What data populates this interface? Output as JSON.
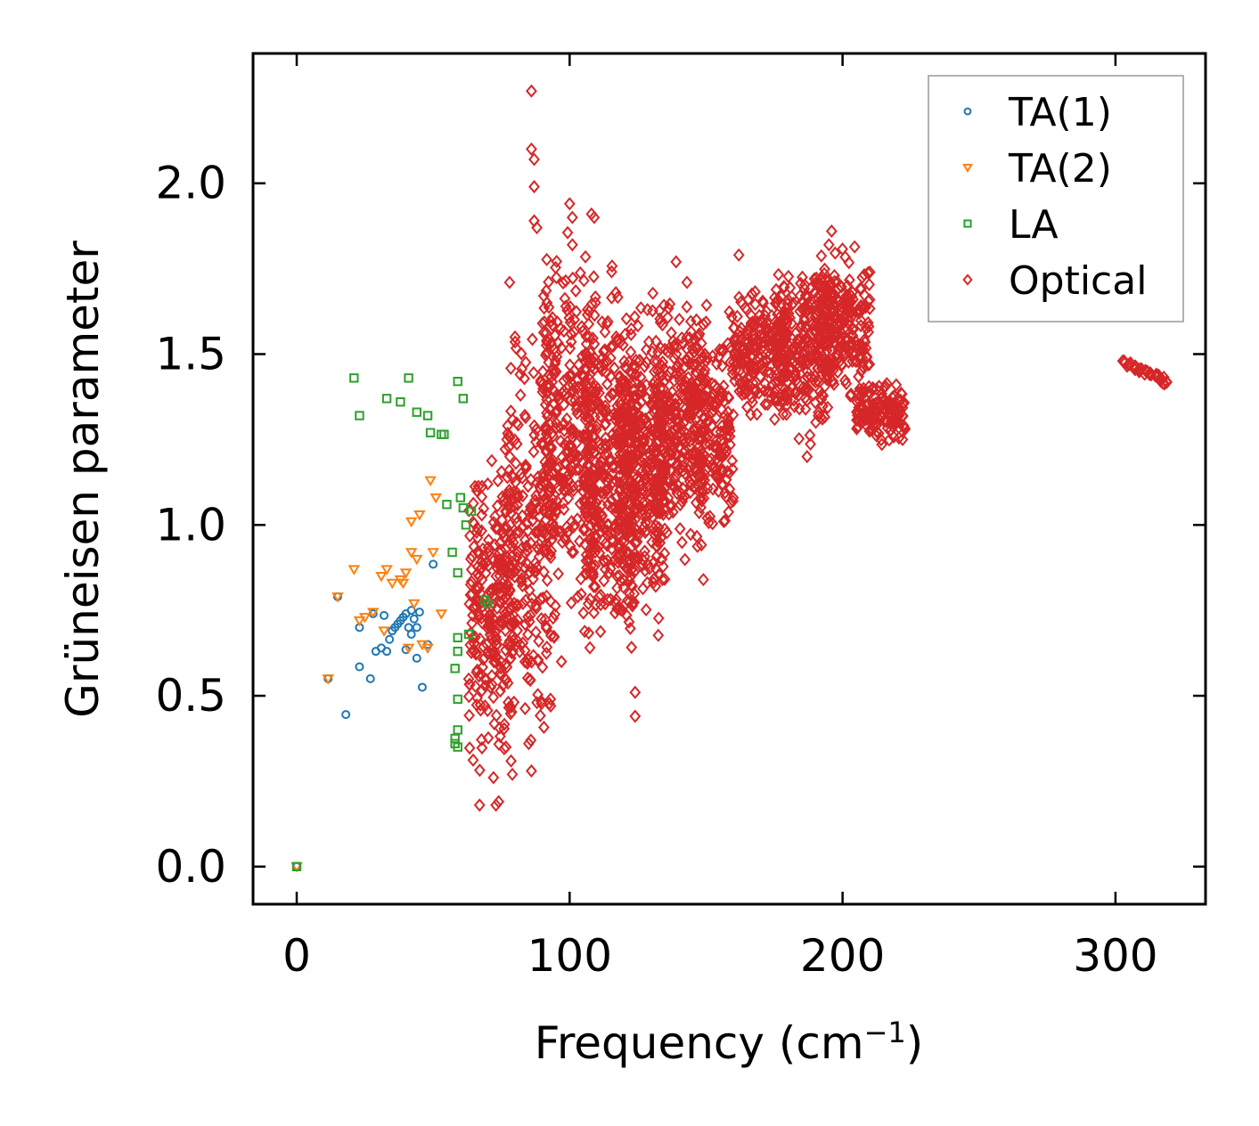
{
  "chart_data": {
    "type": "scatter",
    "title": "",
    "xlabel": "Frequency (cm",
    "xlabel_sup": "−1",
    "xlabel_close": ")",
    "ylabel": "Grüneisen parameter",
    "xlim": [
      -16,
      333
    ],
    "ylim": [
      -0.11,
      2.38
    ],
    "xticks": [
      0,
      100,
      200,
      300
    ],
    "xtick_labels": [
      "0",
      "100",
      "200",
      "300"
    ],
    "yticks": [
      0.0,
      0.5,
      1.0,
      1.5,
      2.0
    ],
    "ytick_labels": [
      "0.0",
      "0.5",
      "1.0",
      "1.5",
      "2.0"
    ],
    "grid": false,
    "legend_position": "top-right",
    "series": [
      {
        "name": "TA(1)",
        "marker": "circle",
        "color": "#1f77b4",
        "points": [
          [
            0,
            0.0
          ],
          [
            11.5,
            0.55
          ],
          [
            15,
            0.79
          ],
          [
            18,
            0.445
          ],
          [
            23,
            0.7
          ],
          [
            23,
            0.585
          ],
          [
            27,
            0.55
          ],
          [
            28,
            0.74
          ],
          [
            29,
            0.63
          ],
          [
            31,
            0.64
          ],
          [
            32,
            0.735
          ],
          [
            33,
            0.63
          ],
          [
            34,
            0.665
          ],
          [
            35,
            0.69
          ],
          [
            36,
            0.7
          ],
          [
            37,
            0.71
          ],
          [
            38,
            0.72
          ],
          [
            39,
            0.73
          ],
          [
            40,
            0.74
          ],
          [
            40,
            0.635
          ],
          [
            41,
            0.7
          ],
          [
            42,
            0.75
          ],
          [
            42,
            0.68
          ],
          [
            43,
            0.725
          ],
          [
            44,
            0.61
          ],
          [
            44,
            0.7
          ],
          [
            45,
            0.745
          ],
          [
            46,
            0.525
          ],
          [
            48,
            0.65
          ],
          [
            50,
            0.885
          ]
        ]
      },
      {
        "name": "TA(2)",
        "marker": "triangle-down",
        "color": "#ff7f0e",
        "points": [
          [
            0,
            0.0
          ],
          [
            11.5,
            0.55
          ],
          [
            15,
            0.79
          ],
          [
            21,
            0.87
          ],
          [
            23,
            0.72
          ],
          [
            25,
            0.73
          ],
          [
            28,
            0.745
          ],
          [
            31,
            0.85
          ],
          [
            32,
            0.69
          ],
          [
            33,
            0.87
          ],
          [
            35,
            0.83
          ],
          [
            38,
            0.84
          ],
          [
            39,
            0.83
          ],
          [
            40,
            0.86
          ],
          [
            41,
            0.64
          ],
          [
            42,
            0.92
          ],
          [
            42,
            1.01
          ],
          [
            43,
            0.77
          ],
          [
            44,
            0.9
          ],
          [
            45,
            1.03
          ],
          [
            46,
            0.65
          ],
          [
            48,
            0.64
          ],
          [
            49,
            1.13
          ],
          [
            50,
            0.92
          ],
          [
            51,
            1.08
          ],
          [
            53,
            0.74
          ]
        ]
      },
      {
        "name": "LA",
        "marker": "square",
        "color": "#2ca02c",
        "points": [
          [
            0,
            0.0
          ],
          [
            21,
            1.43
          ],
          [
            23,
            1.32
          ],
          [
            33,
            1.37
          ],
          [
            38,
            1.36
          ],
          [
            41,
            1.43
          ],
          [
            44,
            1.33
          ],
          [
            48,
            1.32
          ],
          [
            49,
            1.27
          ],
          [
            53,
            1.265
          ],
          [
            54,
            1.265
          ],
          [
            55,
            1.06
          ],
          [
            57,
            0.92
          ],
          [
            58,
            0.58
          ],
          [
            58,
            0.375
          ],
          [
            58,
            0.36
          ],
          [
            59,
            1.42
          ],
          [
            59,
            0.86
          ],
          [
            59,
            0.67
          ],
          [
            59,
            0.63
          ],
          [
            59,
            0.49
          ],
          [
            59,
            0.4
          ],
          [
            59,
            0.35
          ],
          [
            60,
            1.08
          ],
          [
            61,
            1.37
          ],
          [
            61,
            1.05
          ],
          [
            62,
            1.0
          ],
          [
            63,
            0.68
          ],
          [
            64,
            1.04
          ],
          [
            69,
            0.78
          ],
          [
            70,
            0.77
          ]
        ]
      }
    ],
    "optical": {
      "name": "Optical",
      "marker": "diamond",
      "color": "#d62728",
      "points_description_hint": "dense cluster of ~5000 optical modes",
      "regions": [
        [
          63,
          80,
          0.17,
          1.3,
          260
        ],
        [
          75,
          95,
          0.27,
          1.7,
          260
        ],
        [
          90,
          110,
          0.58,
          1.95,
          320
        ],
        [
          105,
          125,
          0.44,
          1.85,
          420
        ],
        [
          118,
          135,
          0.6,
          1.75,
          320
        ],
        [
          130,
          150,
          0.84,
          1.77,
          320
        ],
        [
          145,
          160,
          0.85,
          1.7,
          180
        ],
        [
          160,
          180,
          1.25,
          1.75,
          200
        ],
        [
          175,
          195,
          1.19,
          1.85,
          240
        ],
        [
          190,
          210,
          1.3,
          1.85,
          260
        ],
        [
          205,
          223,
          1.22,
          1.45,
          150
        ]
      ],
      "points": [
        [
          86,
          2.27
        ],
        [
          86,
          2.1
        ],
        [
          87,
          2.07
        ],
        [
          87,
          1.99
        ],
        [
          87,
          1.89
        ],
        [
          88,
          1.87
        ],
        [
          100,
          1.94
        ],
        [
          101,
          1.9
        ],
        [
          108,
          1.91
        ],
        [
          109,
          1.9
        ],
        [
          101,
          1.82
        ],
        [
          99,
          1.43
        ],
        [
          78,
          1.71
        ],
        [
          80,
          1.55
        ],
        [
          82,
          1.38
        ],
        [
          77,
          1.25
        ],
        [
          70,
          1.12
        ],
        [
          66,
          1.1
        ],
        [
          67,
          0.85
        ],
        [
          69,
          0.47
        ],
        [
          67,
          0.18
        ],
        [
          73,
          0.18
        ],
        [
          74,
          0.19
        ],
        [
          79,
          0.27
        ],
        [
          86,
          0.28
        ],
        [
          85,
          0.36
        ],
        [
          88,
          0.48
        ],
        [
          93,
          0.49
        ],
        [
          103,
          0.79
        ],
        [
          97,
          0.6
        ],
        [
          124,
          0.51
        ],
        [
          124,
          0.44
        ],
        [
          134,
          0.84
        ],
        [
          149,
          0.84
        ],
        [
          196,
          1.86
        ],
        [
          195,
          1.82
        ],
        [
          187,
          1.2
        ],
        [
          210,
          1.74
        ],
        [
          222,
          1.32
        ],
        [
          222,
          1.25
        ],
        [
          162,
          1.79
        ],
        [
          165,
          1.56
        ],
        [
          172,
          1.48
        ],
        [
          143,
          1.71
        ],
        [
          139,
          1.77
        ]
      ],
      "tail": [
        [
          303,
          1.48
        ],
        [
          305,
          1.47
        ],
        [
          307,
          1.46
        ],
        [
          309,
          1.45
        ],
        [
          311,
          1.445
        ],
        [
          313,
          1.44
        ],
        [
          315,
          1.435
        ],
        [
          317,
          1.425
        ],
        [
          318,
          1.42
        ]
      ]
    },
    "legend": [
      {
        "label": "TA(1)",
        "marker": "circle",
        "color": "#1f77b4"
      },
      {
        "label": "TA(2)",
        "marker": "triangle-down",
        "color": "#ff7f0e"
      },
      {
        "label": "LA",
        "marker": "square",
        "color": "#2ca02c"
      },
      {
        "label": "Optical",
        "marker": "diamond",
        "color": "#d62728"
      }
    ]
  }
}
